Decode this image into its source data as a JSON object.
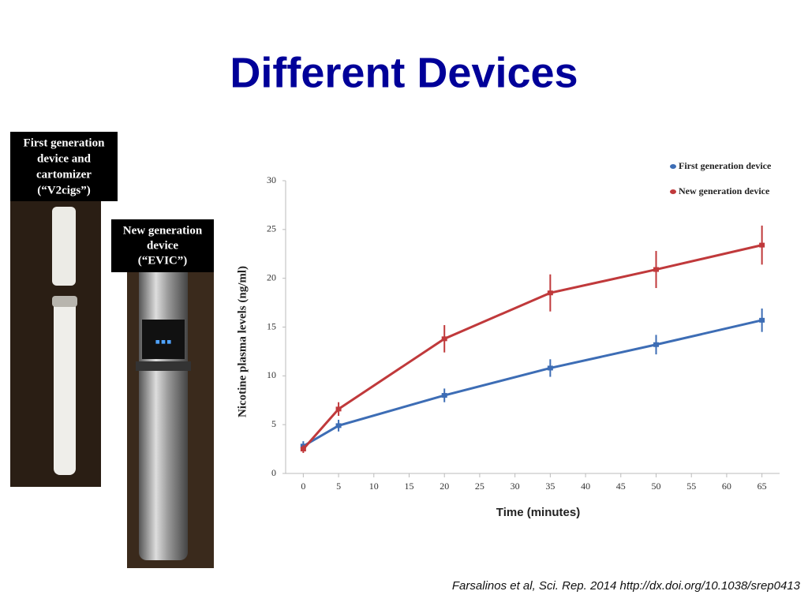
{
  "title": "Different Devices",
  "photos": [
    {
      "label": [
        "First generation",
        "device and",
        "cartomizer",
        "(“V2cigs”)"
      ]
    },
    {
      "label": [
        "New generation",
        "device",
        "(“EVIC”)"
      ]
    }
  ],
  "citation": "Farsalinos et al, Sci. Rep. 2014 http://dx.doi.org/10.1038/srep0413",
  "chart_data": {
    "type": "line",
    "xlabel": "Time (minutes)",
    "ylabel": "Nicotine plasma levels (ng/ml)",
    "x": [
      0,
      5,
      20,
      35,
      50,
      65
    ],
    "series": [
      {
        "name": "First generation device",
        "color": "#3d6db5",
        "values": [
          2.8,
          4.9,
          8.0,
          10.8,
          13.2,
          15.7
        ],
        "errors": [
          0.5,
          0.6,
          0.7,
          0.9,
          1.0,
          1.2
        ]
      },
      {
        "name": "New generation device",
        "color": "#c0393b",
        "values": [
          2.5,
          6.6,
          13.8,
          18.5,
          20.9,
          23.4
        ],
        "errors": [
          0.4,
          0.7,
          1.4,
          1.9,
          1.9,
          2.0
        ]
      }
    ],
    "xlim": [
      -2.5,
      67.5
    ],
    "ylim": [
      0,
      30
    ],
    "xticks": [
      0,
      5,
      10,
      15,
      20,
      25,
      30,
      35,
      40,
      45,
      50,
      55,
      60,
      65
    ],
    "yticks": [
      0,
      5,
      10,
      15,
      20,
      25,
      30
    ],
    "grid": false,
    "legend": "upper right"
  }
}
